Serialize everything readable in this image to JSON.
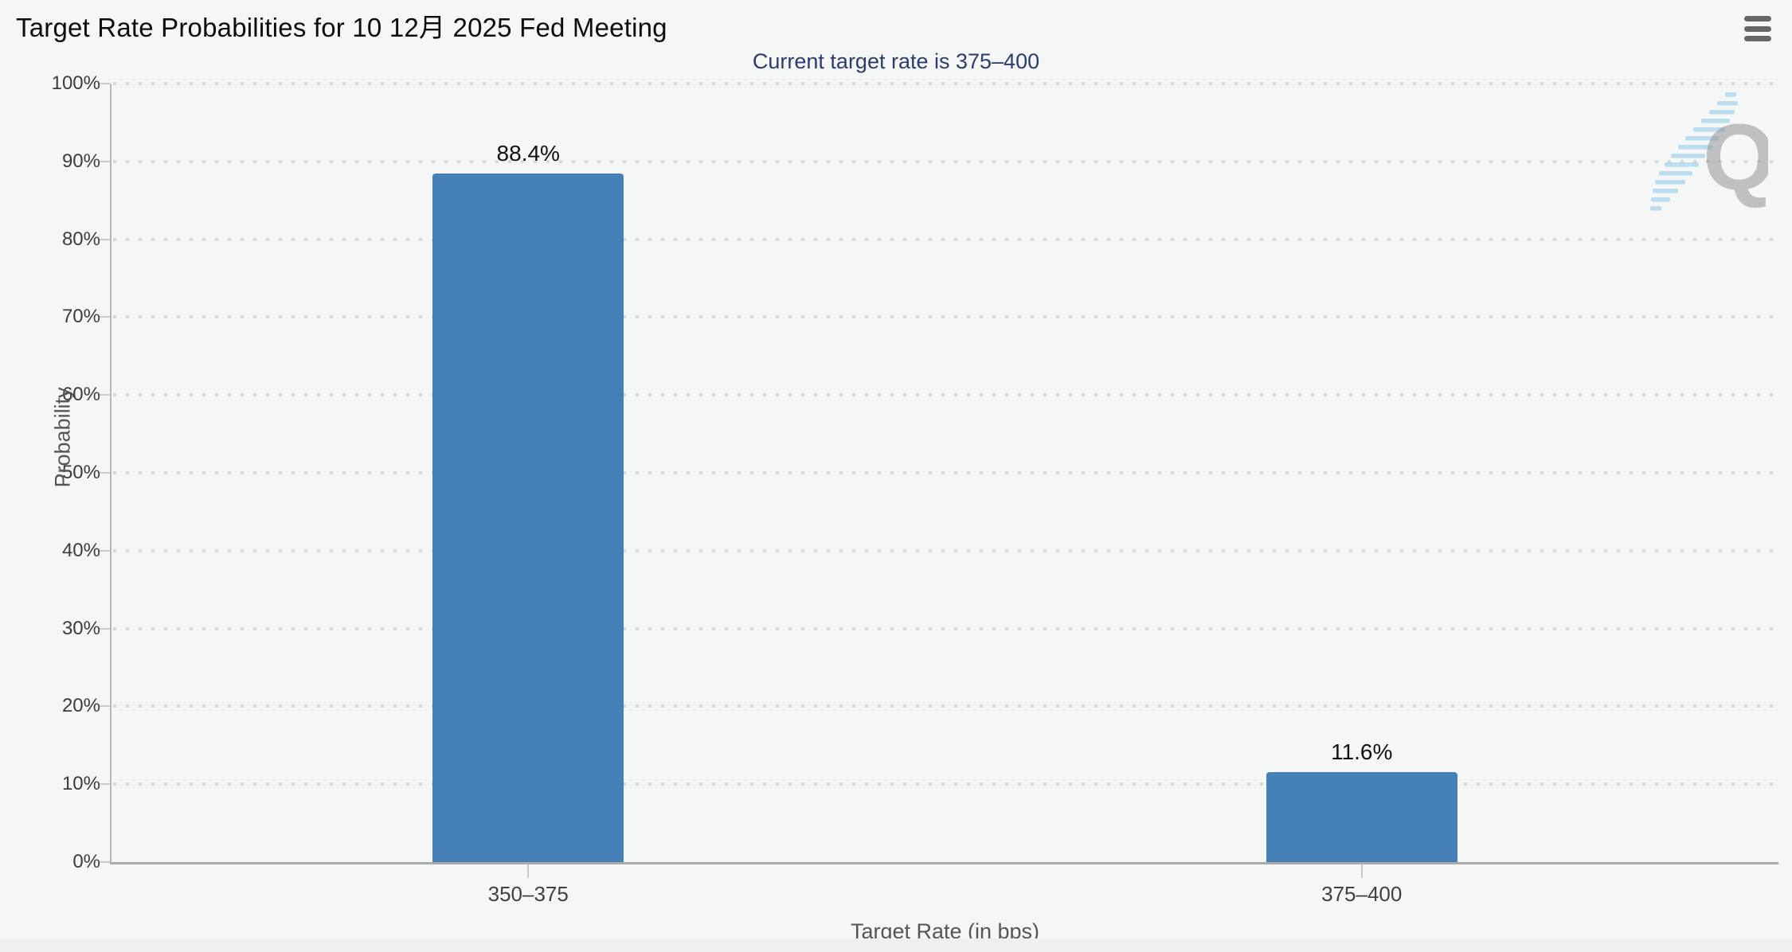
{
  "header": {
    "title": "Target Rate Probabilities for 10 12月 2025 Fed Meeting"
  },
  "chart_data": {
    "type": "bar",
    "title": "Target Rate Probabilities for 10 12月 2025 Fed Meeting",
    "subtitle": "Current target rate is 375–400",
    "xlabel": "Target Rate (in bps)",
    "ylabel": "Probability",
    "categories": [
      "350–375",
      "375–400"
    ],
    "values": [
      88.4,
      11.6
    ],
    "value_labels": [
      "88.4%",
      "11.6%"
    ],
    "yticks": [
      0,
      10,
      20,
      30,
      40,
      50,
      60,
      70,
      80,
      90,
      100
    ],
    "ytick_labels": [
      "0%",
      "10%",
      "20%",
      "30%",
      "40%",
      "50%",
      "60%",
      "70%",
      "80%",
      "90%",
      "100%"
    ],
    "ylim": [
      0,
      100
    ],
    "grid": "dotted-horizontal",
    "legend": "none",
    "bar_color": "#4580b6",
    "subtitle_color": "#2e3c6b"
  },
  "watermark": {
    "letter": "Q"
  }
}
